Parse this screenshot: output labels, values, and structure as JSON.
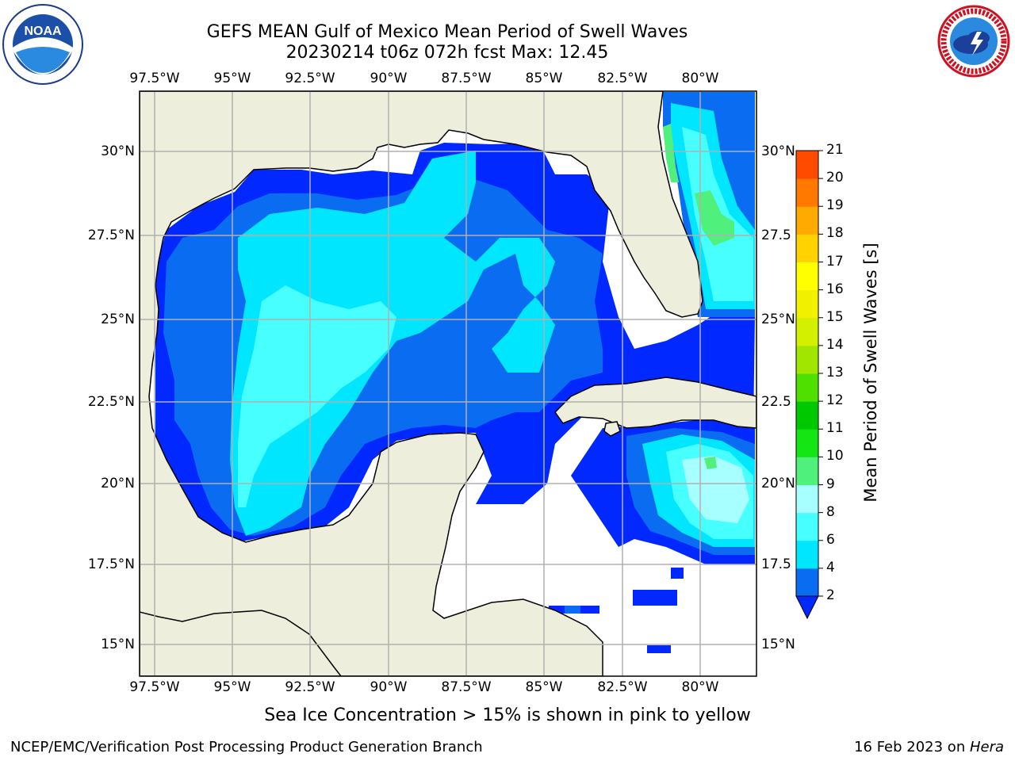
{
  "title": {
    "line1": "GEFS MEAN Gulf of Mexico Mean Period of Swell Waves",
    "line2": "20230214 t06z 072h fcst   Max: 12.45"
  },
  "logos": {
    "left": "noaa-logo",
    "left_text": "NOAA",
    "left_ring_text": "NATIONAL OCEANIC AND ATMOSPHERIC ADMINISTRATION · U.S. DEPARTMENT OF COMMERCE",
    "right": "nws-logo",
    "right_ring_text": "NATIONAL WEATHER SERVICE"
  },
  "map": {
    "lon_labels": [
      "97.5°W",
      "95°W",
      "92.5°W",
      "90°W",
      "87.5°W",
      "85°W",
      "82.5°W",
      "80°W"
    ],
    "lat_labels_left": [
      "30°N",
      "27.5°N",
      "25°N",
      "22.5°N",
      "20°N",
      "17.5°N",
      "15°N"
    ],
    "lat_labels_right": [
      "30°N",
      "27.5",
      "25°N",
      "22.5",
      "20°N",
      "17.5",
      "15°N"
    ],
    "land_color": "#eeeedc",
    "ocean_nodata_color": "#ffffff",
    "grid_color": "#b0b0b0"
  },
  "colorbar": {
    "title": "Mean Period of Swell Waves [s]",
    "levels": [
      2,
      4,
      6,
      8,
      9,
      10,
      11,
      12,
      13,
      14,
      15,
      16,
      17,
      18,
      19,
      20,
      21
    ],
    "labels": [
      "2",
      "4",
      "6",
      "8",
      "9",
      "10",
      "11",
      "12",
      "13",
      "14",
      "15",
      "16",
      "17",
      "18",
      "19",
      "20",
      "21"
    ],
    "colors": [
      "#0a6cf0",
      "#00e6ff",
      "#48ffff",
      "#a8ffff",
      "#50f07c",
      "#14e614",
      "#00c800",
      "#50e000",
      "#a0e600",
      "#d2f000",
      "#f0f000",
      "#ffff00",
      "#ffd200",
      "#ffaa00",
      "#ff7800",
      "#ff4b00",
      "#ff1400"
    ],
    "extend_color": "#0028ff"
  },
  "note": "Sea Ice Concentration > 15% is shown in pink to yellow",
  "footer": {
    "left": "NCEP/EMC/Verification Post Processing Product Generation Branch",
    "right_prefix": "16 Feb 2023 on ",
    "right_em": "Hera"
  }
}
